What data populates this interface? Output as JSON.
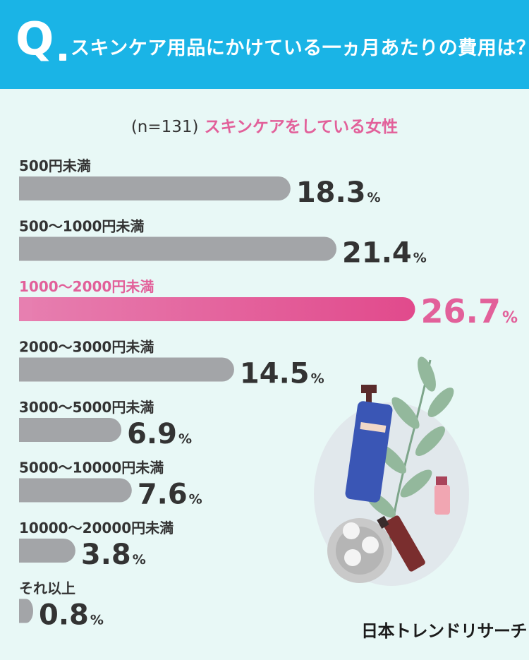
{
  "header": {
    "q_mark": "Q",
    "question": "スキンケア用品にかけている一ヵ月あたりの費用は？"
  },
  "subtitle": {
    "n": "(n=131)",
    "who": "スキンケアをしている女性"
  },
  "brand": "日本トレンドリサーチ",
  "colors": {
    "header": "#1ab4e6",
    "background": "#e8f8f6",
    "bar": "#a3a5a8",
    "highlight_start": "#e77fb0",
    "highlight_end": "#e14a8c",
    "highlight_text": "#e2609a",
    "text": "#333333"
  },
  "chart_data": {
    "type": "bar",
    "orientation": "horizontal",
    "unit": "%",
    "categories": [
      "500円未満",
      "500〜1000円未満",
      "1000〜2000円未満",
      "2000〜3000円未満",
      "3000〜5000円未満",
      "5000〜10000円未満",
      "10000〜20000円未満",
      "それ以上"
    ],
    "values": [
      18.3,
      21.4,
      26.7,
      14.5,
      6.9,
      7.6,
      3.8,
      0.8
    ],
    "highlight_index": 2,
    "xlim": [
      0,
      28
    ]
  }
}
